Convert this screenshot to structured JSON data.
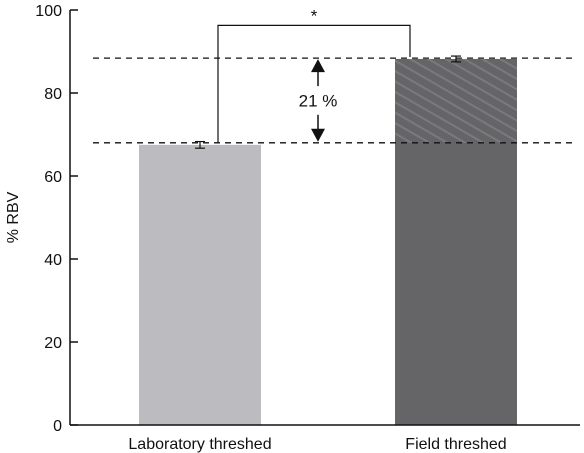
{
  "colors": {
    "lab_bar": "#bcbcc0",
    "field_bar": "#656568",
    "hatch": "#7a7a7e",
    "axis": "#111111",
    "dashed": "#111111"
  },
  "chart_data": {
    "type": "bar",
    "categories": [
      "Laboratory threshed",
      "Field threshed"
    ],
    "values": [
      67.5,
      88.2
    ],
    "error": [
      0.8,
      0.7
    ],
    "ylabel": "% RBV",
    "xlabel": "",
    "ylim": [
      0,
      100
    ],
    "yticks": [
      0,
      20,
      40,
      60,
      80,
      100
    ],
    "grid": false,
    "hatch_on": "Field threshed",
    "hatch_range": [
      68,
      88.2
    ],
    "reference_lines": [
      68,
      88.4
    ],
    "difference_label": "21 %",
    "significance_label": "*"
  }
}
